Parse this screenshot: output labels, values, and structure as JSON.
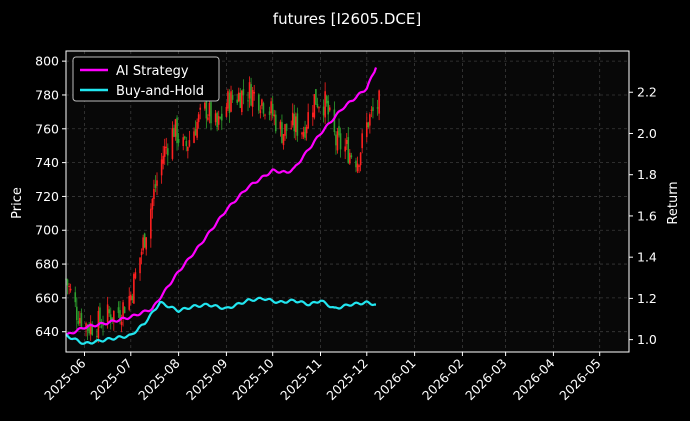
{
  "chart_data": {
    "type": "line",
    "title": "futures [I2605.DCE]",
    "background": "#000000",
    "grid": true,
    "legend_position": "top-left",
    "xlabel": "",
    "x_ticks": [
      "2025-06",
      "2025-07",
      "2025-08",
      "2025-09",
      "2025-10",
      "2025-11",
      "2025-12",
      "2026-01",
      "2026-02",
      "2026-03",
      "2026-04",
      "2026-05"
    ],
    "x_range": [
      "2025-05-20",
      "2026-05-20"
    ],
    "left_axis": {
      "label": "Price",
      "ylim": [
        628,
        806
      ],
      "ticks": [
        640,
        660,
        680,
        700,
        720,
        740,
        760,
        780,
        800
      ]
    },
    "right_axis": {
      "label": "Return",
      "ylim": [
        0.94,
        2.4
      ],
      "ticks": [
        "1.0",
        "1.2",
        "1.4",
        "1.6",
        "1.8",
        "2.0",
        "2.2"
      ]
    },
    "candle_colors": {
      "up": "#ff2020",
      "down": "#2ea02e"
    },
    "price_series": {
      "name": "",
      "axis": "left",
      "dates": [
        "2025-05-20",
        "2025-05-27",
        "2025-06-03",
        "2025-06-10",
        "2025-06-17",
        "2025-06-24",
        "2025-07-01",
        "2025-07-08",
        "2025-07-15",
        "2025-07-22",
        "2025-07-29",
        "2025-08-05",
        "2025-08-12",
        "2025-08-19",
        "2025-08-26",
        "2025-09-02",
        "2025-09-09",
        "2025-09-16",
        "2025-09-23",
        "2025-09-30",
        "2025-10-07",
        "2025-10-14",
        "2025-10-21",
        "2025-10-28",
        "2025-11-04",
        "2025-11-11",
        "2025-11-18",
        "2025-11-25",
        "2025-12-02",
        "2025-12-09"
      ],
      "close": [
        671,
        652,
        643,
        645,
        650,
        652,
        662,
        688,
        718,
        745,
        760,
        748,
        762,
        772,
        760,
        776,
        780,
        782,
        778,
        770,
        758,
        762,
        760,
        778,
        775,
        752,
        748,
        742,
        765,
        775
      ]
    },
    "series": [
      {
        "name": "AI Strategy",
        "axis": "right",
        "color": "#ff00ff",
        "dates": [
          "2025-05-20",
          "2025-06-01",
          "2025-06-15",
          "2025-07-01",
          "2025-07-15",
          "2025-08-01",
          "2025-08-15",
          "2025-09-01",
          "2025-09-15",
          "2025-10-01",
          "2025-10-10",
          "2025-10-15",
          "2025-11-01",
          "2025-11-15",
          "2025-12-01",
          "2025-12-07"
        ],
        "values": [
          1.02,
          1.06,
          1.08,
          1.11,
          1.15,
          1.33,
          1.46,
          1.63,
          1.74,
          1.82,
          1.81,
          1.83,
          2.0,
          2.12,
          2.22,
          2.32
        ]
      },
      {
        "name": "Buy-and-Hold",
        "axis": "right",
        "color": "#22e6f0",
        "dates": [
          "2025-05-20",
          "2025-06-01",
          "2025-06-15",
          "2025-07-01",
          "2025-07-10",
          "2025-07-20",
          "2025-08-01",
          "2025-08-10",
          "2025-08-20",
          "2025-09-01",
          "2025-09-15",
          "2025-09-25",
          "2025-10-05",
          "2025-10-15",
          "2025-10-25",
          "2025-11-01",
          "2025-11-10",
          "2025-11-20",
          "2025-12-01",
          "2025-12-07"
        ],
        "values": [
          1.02,
          0.98,
          1.0,
          1.02,
          1.08,
          1.18,
          1.14,
          1.16,
          1.17,
          1.15,
          1.19,
          1.2,
          1.18,
          1.19,
          1.17,
          1.19,
          1.15,
          1.17,
          1.18,
          1.17
        ]
      }
    ]
  }
}
